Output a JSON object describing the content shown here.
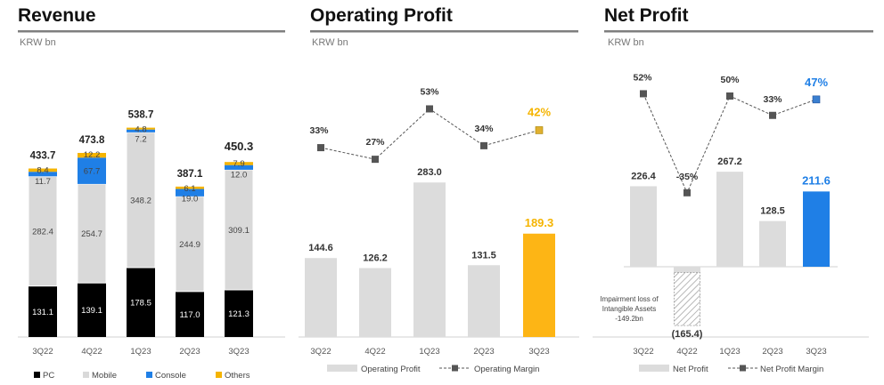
{
  "colors": {
    "pc": "#000000",
    "mobile": "#d9d9d9",
    "console": "#1f7fe6",
    "others": "#f5b400",
    "bar": "#dcdcdc",
    "highlight_orange": "#fdb515",
    "highlight_blue": "#1f7fe6",
    "line": "#555555"
  },
  "chart_data": [
    {
      "type": "bar",
      "stacked": true,
      "title": "Revenue",
      "unit": "KRW bn",
      "categories": [
        "3Q22",
        "4Q22",
        "1Q23",
        "2Q23",
        "3Q23"
      ],
      "series": [
        {
          "name": "PC",
          "values": [
            131.1,
            139.1,
            178.5,
            117.0,
            121.3
          ],
          "labels": [
            "131.1",
            "139.1",
            "178.5",
            "117.0",
            "121.3"
          ]
        },
        {
          "name": "Mobile",
          "values": [
            282.4,
            254.7,
            348.2,
            244.9,
            309.1
          ],
          "labels": [
            "282.4",
            "254.7",
            "348.2",
            "244.9",
            "309.1"
          ]
        },
        {
          "name": "Console",
          "values": [
            11.7,
            67.7,
            7.2,
            19.0,
            12.0
          ],
          "labels": [
            "11.7",
            "67.7",
            "7.2",
            "19.0",
            "12.0"
          ]
        },
        {
          "name": "Others",
          "values": [
            8.4,
            12.2,
            4.8,
            6.1,
            7.9
          ],
          "labels": [
            "8.4",
            "12.2",
            "4.8",
            "6.1",
            "7.9"
          ]
        }
      ],
      "totals": [
        "433.7",
        "473.8",
        "538.7",
        "387.1",
        "450.3"
      ],
      "legend_position": "bottom"
    },
    {
      "type": "bar+line",
      "title": "Operating Profit",
      "unit": "KRW bn",
      "categories": [
        "3Q22",
        "4Q22",
        "1Q23",
        "2Q23",
        "3Q23"
      ],
      "series": [
        {
          "name": "Operating Profit",
          "values": [
            144.6,
            126.2,
            283.0,
            131.5,
            189.3
          ],
          "labels": [
            "144.6",
            "126.2",
            "283.0",
            "131.5",
            "189.3"
          ]
        },
        {
          "name": "Operating Margin",
          "values": [
            33,
            27,
            53,
            34,
            42
          ],
          "labels": [
            "33%",
            "27%",
            "53%",
            "34%",
            "42%"
          ]
        }
      ],
      "highlight_index": 4,
      "legend_position": "bottom"
    },
    {
      "type": "bar+line",
      "title": "Net Profit",
      "unit": "KRW bn",
      "categories": [
        "3Q22",
        "4Q22",
        "1Q23",
        "2Q23",
        "3Q23"
      ],
      "series": [
        {
          "name": "Net Profit",
          "values": [
            226.4,
            -165.4,
            267.2,
            128.5,
            211.6
          ],
          "labels": [
            "226.4",
            "(165.4)",
            "267.2",
            "128.5",
            "211.6"
          ]
        },
        {
          "name": "Net Profit Margin",
          "values": [
            52,
            -35,
            50,
            33,
            47
          ],
          "labels": [
            "52%",
            "-35%",
            "50%",
            "33%",
            "47%"
          ]
        }
      ],
      "highlight_index": 4,
      "annotation": {
        "lines": [
          "Impairment loss of",
          "Intangible Assets",
          "-149.2bn"
        ],
        "impairment_value": -149.2
      },
      "legend_position": "bottom"
    }
  ]
}
